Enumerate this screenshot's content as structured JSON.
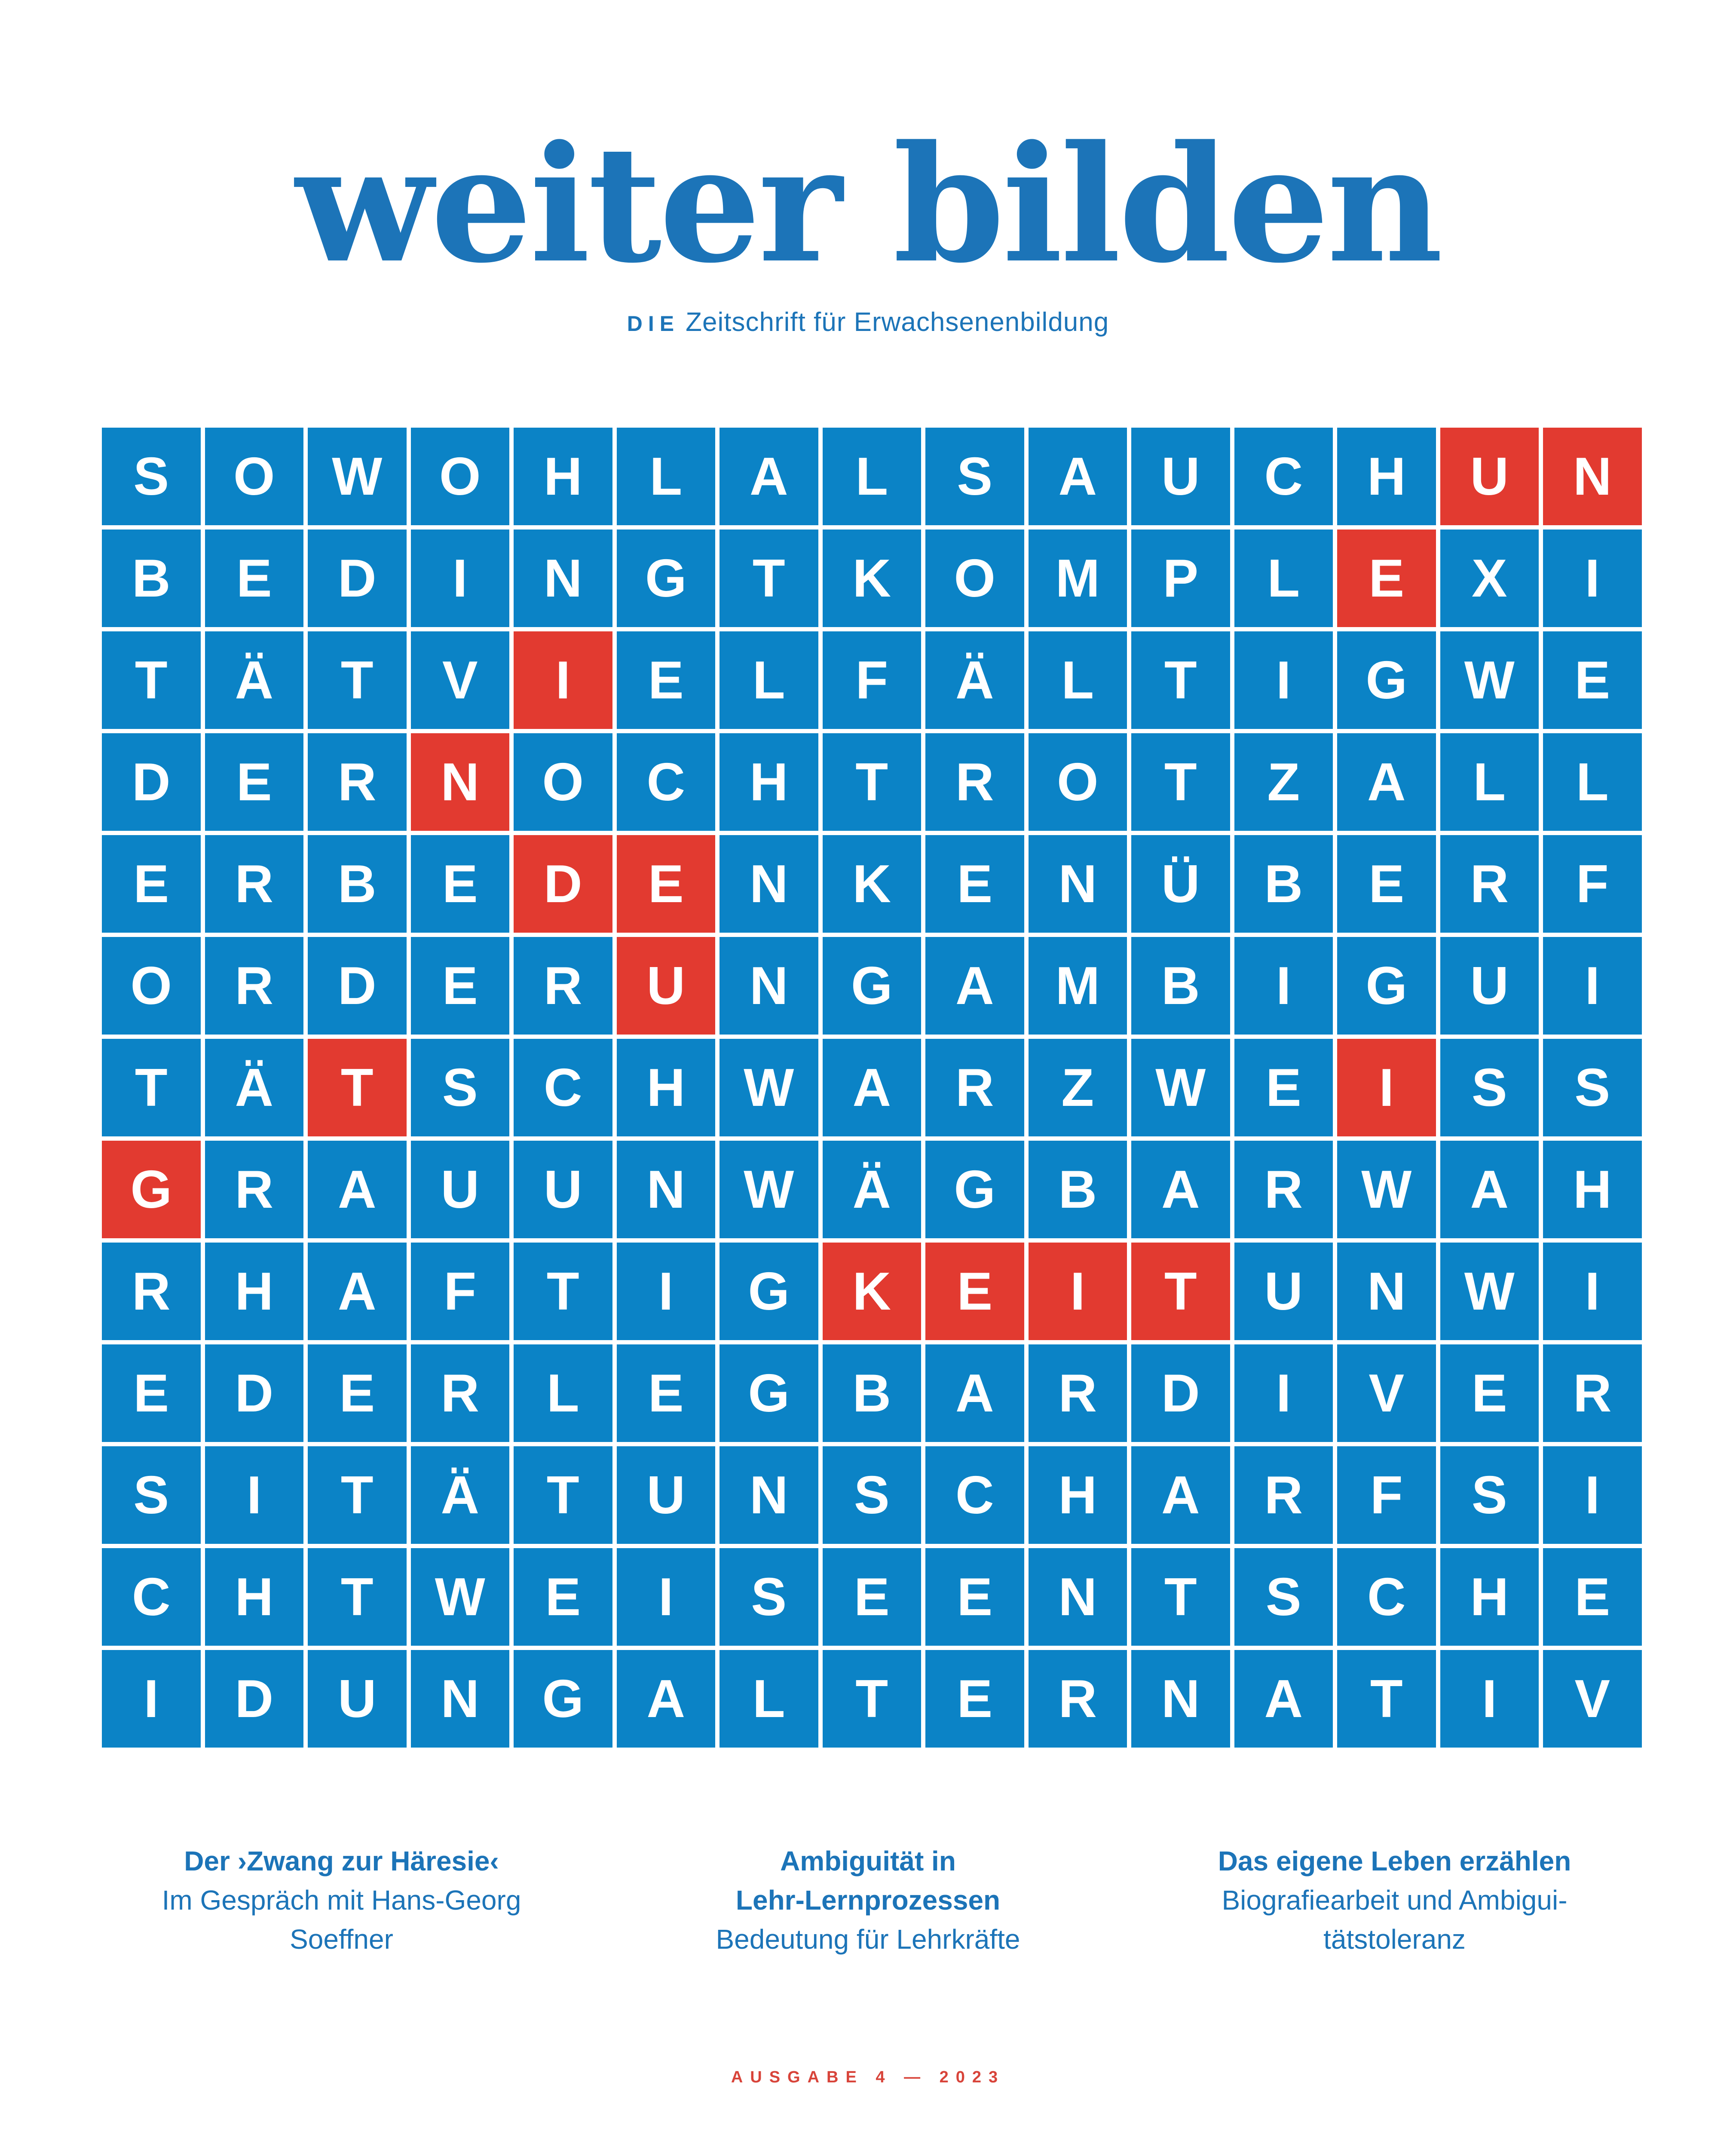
{
  "header": {
    "title": "weiter bilden",
    "subtitle_prefix": "DIE",
    "subtitle_rest": "Zeitschrift für Erwachsenenbildung"
  },
  "puzzle": {
    "rows": [
      "SOWOHLALSAUCHUN",
      "BEDINGTKOMPLEXI",
      "TÄTVIELFÄLTIGWE",
      "DERNOCHTROTZALL",
      "ERBEDENKENÜBERF",
      "ORDERUNGAMBIGUI",
      "TÄTSCHWARZWEISS",
      "GRAUUNWÄGBARWAH",
      "RHAFTIGKEITUNWI",
      "EDERLEGBARDIVER",
      "SITÄTUNSCHARFSI",
      "CHTWEISEENTSCHE",
      "IDUNGALTERNATIV"
    ],
    "highlighted_cells": [
      [
        1,
        14
      ],
      [
        1,
        15
      ],
      [
        2,
        13
      ],
      [
        3,
        5
      ],
      [
        4,
        4
      ],
      [
        5,
        5
      ],
      [
        5,
        6
      ],
      [
        6,
        6
      ],
      [
        7,
        3
      ],
      [
        7,
        13
      ],
      [
        8,
        1
      ],
      [
        9,
        8
      ],
      [
        9,
        9
      ],
      [
        9,
        10
      ],
      [
        9,
        11
      ]
    ],
    "highlighted_word": "UNEINDEUTIGKEIT",
    "cell_color": "#0b83c6",
    "highlight_color": "#e23a30",
    "letter_color": "#ffffff"
  },
  "teasers": [
    {
      "bold_lines": [
        "Der ›Zwang zur Häresie‹"
      ],
      "lines": [
        "Im Gespräch mit Hans-Georg",
        "Soeffner"
      ]
    },
    {
      "bold_lines": [
        "Ambiguität in",
        "Lehr-Lernprozessen"
      ],
      "lines": [
        "Bedeutung für Lehrkräfte"
      ]
    },
    {
      "bold_lines": [
        "Das eigene Leben erzählen"
      ],
      "lines": [
        "Biografiearbeit und Ambigui-",
        "tätstoleranz"
      ]
    }
  ],
  "footer": {
    "issue": "AUSGABE 4 — 2023"
  },
  "colors": {
    "text_blue": "#1c74b8",
    "cell_blue": "#0b83c6",
    "red": "#e23a30",
    "background": "#ffffff"
  }
}
